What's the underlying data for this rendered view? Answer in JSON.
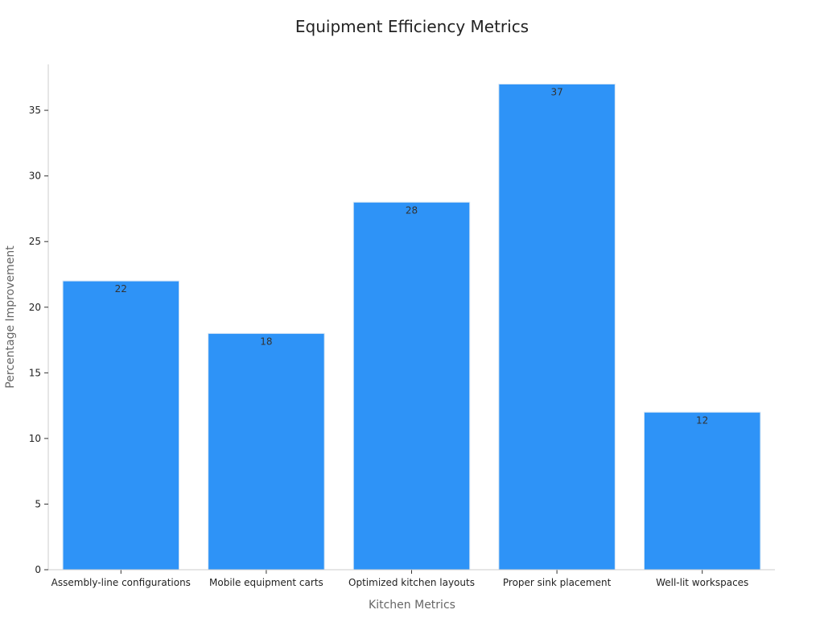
{
  "chart_data": {
    "type": "bar",
    "title": "Equipment Efficiency Metrics",
    "xlabel": "Kitchen Metrics",
    "ylabel": "Percentage Improvement",
    "categories": [
      "Assembly-line configurations",
      "Mobile equipment carts",
      "Optimized kitchen layouts",
      "Proper sink placement",
      "Well-lit workspaces"
    ],
    "values": [
      22,
      18,
      28,
      37,
      12
    ],
    "ylim": [
      0,
      38.5
    ],
    "yticks": [
      0,
      5,
      10,
      15,
      20,
      25,
      30,
      35
    ],
    "grid": false,
    "legend": "none",
    "colors": {
      "bar": "#2e93f7",
      "bar_edge": "#d6e6f5",
      "axis": "#cccccc"
    }
  }
}
